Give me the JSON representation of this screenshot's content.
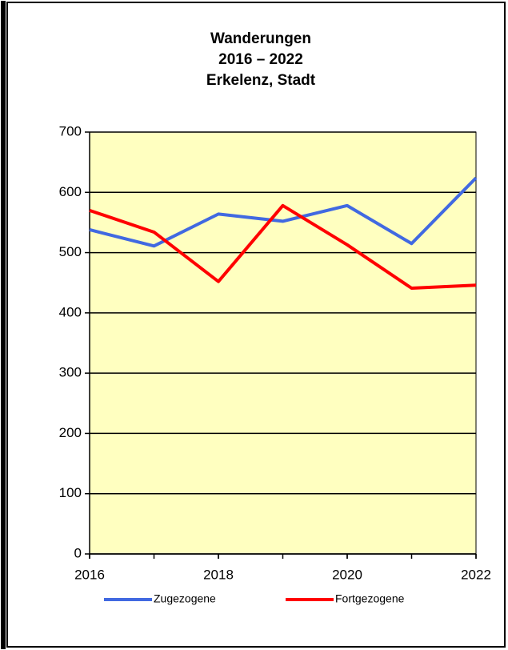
{
  "chart_data": {
    "type": "line",
    "title": [
      "Wanderungen",
      "2016 – 2022",
      "Erkelenz, Stadt"
    ],
    "x": [
      2016,
      2017,
      2018,
      2019,
      2020,
      2021,
      2022
    ],
    "xlim": [
      2016,
      2022
    ],
    "xticks": [
      2016,
      2018,
      2020,
      2022
    ],
    "ylim": [
      0,
      700
    ],
    "yticks": [
      0,
      100,
      200,
      300,
      400,
      500,
      600,
      700
    ],
    "grid": true,
    "plot_background": "#ffffc0",
    "series": [
      {
        "name": "Zugezogene",
        "color": "#4169e1",
        "values": [
          538,
          511,
          564,
          552,
          578,
          515,
          624
        ]
      },
      {
        "name": "Fortgezogene",
        "color": "#ff0000",
        "values": [
          570,
          534,
          452,
          578,
          513,
          441,
          446
        ]
      }
    ],
    "legend": "bottom"
  }
}
